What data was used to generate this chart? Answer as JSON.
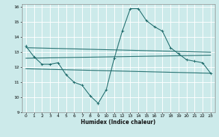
{
  "xlabel": "Humidex (Indice chaleur)",
  "xlim": [
    -0.5,
    23.5
  ],
  "ylim": [
    9,
    16.2
  ],
  "yticks": [
    9,
    10,
    11,
    12,
    13,
    14,
    15,
    16
  ],
  "xticks": [
    0,
    1,
    2,
    3,
    4,
    5,
    6,
    7,
    8,
    9,
    10,
    11,
    12,
    13,
    14,
    15,
    16,
    17,
    18,
    19,
    20,
    21,
    22,
    23
  ],
  "bg_color": "#cceaea",
  "grid_color": "#b0d8d8",
  "line_color": "#1e6b6b",
  "curve1_x": [
    0,
    1,
    2,
    3,
    4,
    5,
    6,
    7,
    8,
    9,
    10,
    11,
    12,
    13,
    14,
    15,
    16,
    17,
    18,
    19,
    20,
    21,
    22,
    23
  ],
  "curve1_y": [
    13.4,
    12.7,
    12.2,
    12.2,
    12.3,
    11.5,
    11.0,
    10.8,
    10.1,
    9.6,
    10.5,
    12.6,
    14.4,
    15.9,
    15.9,
    15.1,
    14.7,
    14.4,
    13.3,
    12.9,
    12.5,
    12.4,
    12.3,
    11.6
  ],
  "line1_x": [
    0,
    23
  ],
  "line1_y": [
    13.3,
    13.0
  ],
  "line2_x": [
    0,
    23
  ],
  "line2_y": [
    12.6,
    12.8
  ],
  "line3_x": [
    0,
    23
  ],
  "line3_y": [
    11.9,
    11.6
  ]
}
